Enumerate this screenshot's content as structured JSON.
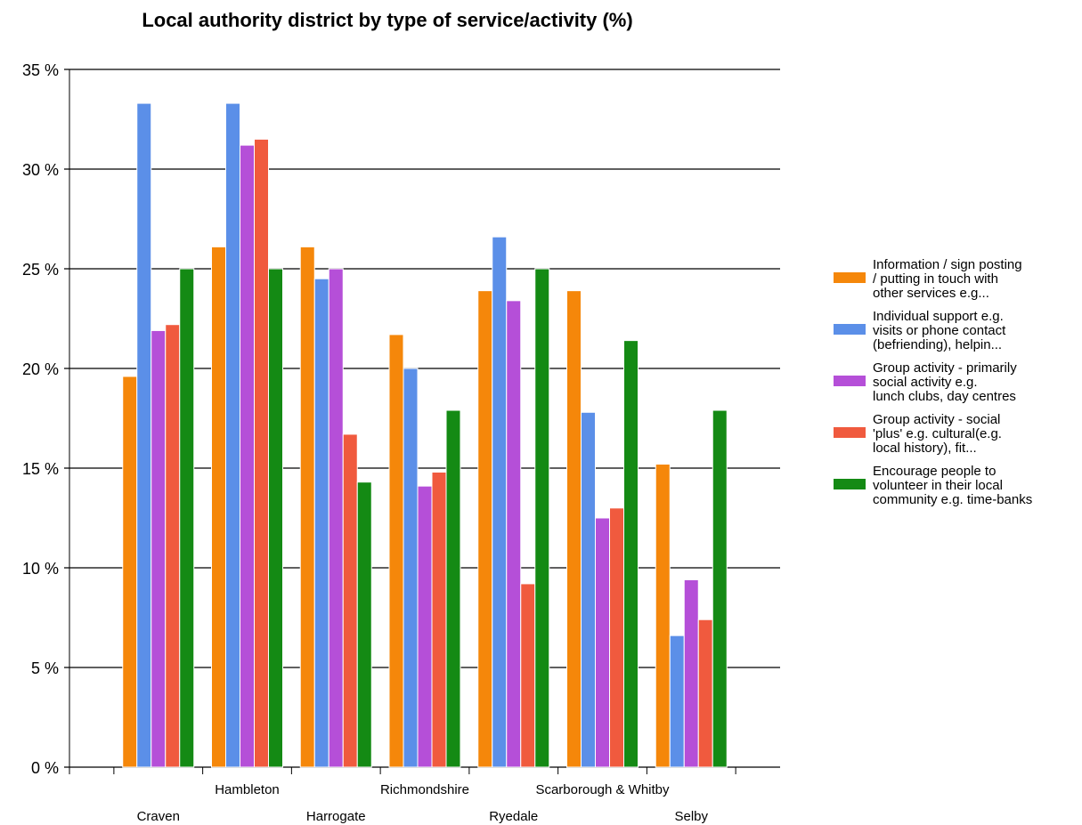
{
  "chart_data": {
    "type": "bar",
    "title": "Local authority district by type of service/activity (%)",
    "xlabel": "",
    "ylabel": "",
    "ylim": [
      0,
      35
    ],
    "y_ticks": [
      "0 %",
      "5 %",
      "10 %",
      "15 %",
      "20 %",
      "25 %",
      "30 %",
      "35 %"
    ],
    "grid": true,
    "legend_position": "right",
    "categories": [
      "Craven",
      "Hambleton",
      "Harrogate",
      "Richmondshire",
      "Ryedale",
      "Scarborough & Whitby",
      "Selby"
    ],
    "series": [
      {
        "name": "Information / sign posting\n/ putting in touch with\nother services e.g...",
        "color": "#f5870a",
        "values": [
          19.6,
          26.1,
          26.1,
          21.7,
          23.9,
          23.9,
          15.2
        ]
      },
      {
        "name": "Individual support e.g.\nvisits or phone contact\n(befriending), helpin...",
        "color": "#5b8fe8",
        "values": [
          33.3,
          33.3,
          24.5,
          20.0,
          26.6,
          17.8,
          6.6
        ]
      },
      {
        "name": "Group activity - primarily\nsocial activity e.g.\nlunch clubs, day centres",
        "color": "#b54fd8",
        "values": [
          21.9,
          31.2,
          25.0,
          14.1,
          23.4,
          12.5,
          9.4
        ]
      },
      {
        "name": "Group activity - social\n'plus' e.g. cultural(e.g.\nlocal history), fit...",
        "color": "#f05a3e",
        "values": [
          22.2,
          31.5,
          16.7,
          14.8,
          9.2,
          13.0,
          7.4
        ]
      },
      {
        "name": "Encourage people to\nvolunteer in their local\ncommunity e.g. time-banks",
        "color": "#148a14",
        "values": [
          25.0,
          25.0,
          14.3,
          17.9,
          25.0,
          21.4,
          17.9
        ]
      }
    ]
  }
}
